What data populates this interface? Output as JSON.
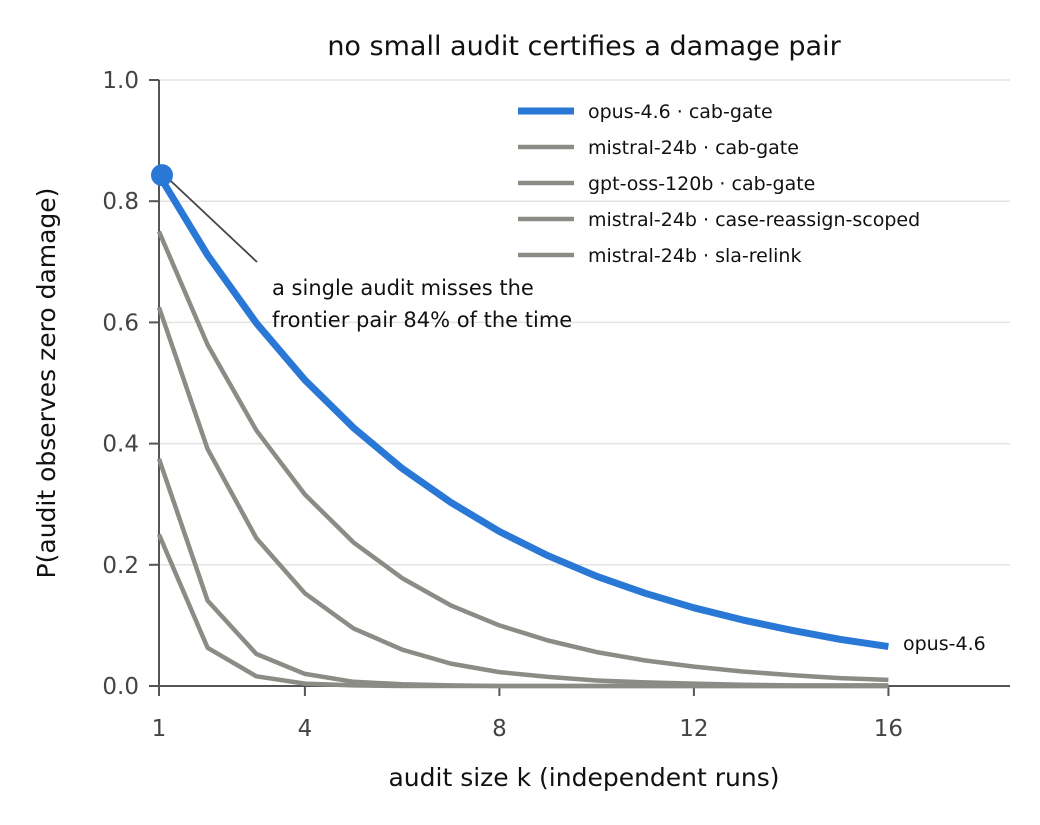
{
  "chart_data": {
    "type": "line",
    "title": "no small audit certifies a damage pair",
    "xlabel": "audit size k (independent runs)",
    "ylabel": "P(audit observes zero damage)",
    "xlim": [
      1,
      18.5
    ],
    "ylim": [
      0,
      1.0
    ],
    "xticks": [
      1,
      4,
      8,
      12,
      16
    ],
    "yticks": [
      0.0,
      0.2,
      0.4,
      0.6,
      0.8,
      1.0
    ],
    "ytick_labels": [
      "0.0",
      "0.2",
      "0.4",
      "0.6",
      "0.8",
      "1.0"
    ],
    "grid": "horizontal",
    "legend_position": "top-right",
    "x": [
      1,
      2,
      3,
      4,
      5,
      6,
      7,
      8,
      9,
      10,
      11,
      12,
      13,
      14,
      15,
      16
    ],
    "series": [
      {
        "name": "opus-4.6 · cab-gate",
        "color": "#2a78d6",
        "highlight": true,
        "values": [
          0.843,
          0.711,
          0.599,
          0.505,
          0.426,
          0.359,
          0.303,
          0.255,
          0.215,
          0.181,
          0.153,
          0.129,
          0.109,
          0.092,
          0.077,
          0.065
        ]
      },
      {
        "name": "mistral-24b · cab-gate",
        "color": "#8c8c86",
        "values": [
          0.75,
          0.563,
          0.422,
          0.316,
          0.237,
          0.178,
          0.133,
          0.1,
          0.075,
          0.056,
          0.042,
          0.032,
          0.024,
          0.018,
          0.013,
          0.01
        ]
      },
      {
        "name": "gpt-oss-120b · cab-gate",
        "color": "#8c8c86",
        "values": [
          0.625,
          0.391,
          0.244,
          0.153,
          0.095,
          0.06,
          0.037,
          0.023,
          0.015,
          0.009,
          0.006,
          0.004,
          0.002,
          0.001,
          0.001,
          0.001
        ]
      },
      {
        "name": "mistral-24b · case-reassign-scoped",
        "color": "#8c8c86",
        "values": [
          0.375,
          0.141,
          0.053,
          0.02,
          0.007,
          0.003,
          0.001,
          0.0,
          0.0,
          0.0,
          0.0,
          0.0,
          0.0,
          0.0,
          0.0,
          0.0
        ]
      },
      {
        "name": "mistral-24b · sla-relink",
        "color": "#8c8c86",
        "values": [
          0.25,
          0.063,
          0.016,
          0.004,
          0.001,
          0.0,
          0.0,
          0.0,
          0.0,
          0.0,
          0.0,
          0.0,
          0.0,
          0.0,
          0.0,
          0.0
        ]
      }
    ],
    "annotation": {
      "lines": [
        "a single audit misses the",
        "frontier pair 84% of the time"
      ],
      "point": {
        "x": 1,
        "y": 0.843
      },
      "anchor_series": "opus-4.6 · cab-gate"
    },
    "end_label": "opus-4.6"
  }
}
